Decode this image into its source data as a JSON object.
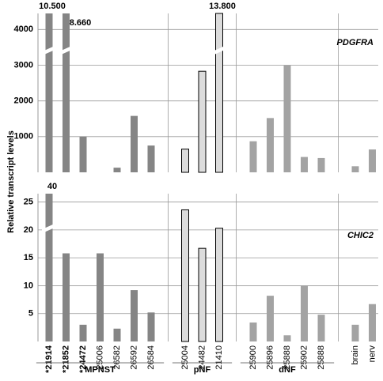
{
  "chart_data": [
    {
      "type": "bar",
      "title": "PDGFRA",
      "ylabel": "Relative transcript levels",
      "ylim": [
        0,
        4450
      ],
      "yticks": [
        1000,
        2000,
        3000,
        4000
      ],
      "grid": true,
      "groups": [
        {
          "color": "#858585",
          "values": [
            10500,
            8660,
            1000,
            0,
            130,
            1580,
            750
          ],
          "value_labels": [
            "10.500",
            "8.660",
            null,
            null,
            null,
            null,
            null
          ]
        },
        {
          "color": "#dcdcdc",
          "values": [
            650,
            2830,
            13800
          ],
          "value_labels": [
            null,
            null,
            "13.800"
          ]
        },
        {
          "color": "#a3a3a3",
          "values": [
            870,
            1520,
            3000,
            430,
            400
          ]
        },
        {
          "color": "#a3a3a3",
          "values": [
            170,
            640
          ]
        }
      ]
    },
    {
      "type": "bar",
      "title": "CHIC2",
      "ylim": [
        0,
        26.5
      ],
      "yticks": [
        5,
        10,
        15,
        20,
        25
      ],
      "grid": true,
      "groups": [
        {
          "name": "MPNST",
          "color": "#858585",
          "categories": [
            "*21914",
            "*21852",
            "*24472",
            "25006",
            "26582",
            "26592",
            "26584"
          ],
          "values": [
            40,
            15.8,
            3,
            15.8,
            2.3,
            9.2,
            5.2
          ],
          "value_labels": [
            "40",
            null,
            null,
            null,
            null,
            null,
            null
          ]
        },
        {
          "name": "pNF",
          "color": "#dcdcdc",
          "categories": [
            "25004",
            "24482",
            "21410"
          ],
          "values": [
            23.6,
            16.7,
            20.3
          ]
        },
        {
          "name": "dNF",
          "color": "#a3a3a3",
          "categories": [
            "25900",
            "25896",
            "25888",
            "25902",
            "25888"
          ],
          "values": [
            3.4,
            8.2,
            1.1,
            10,
            4.8
          ]
        },
        {
          "color": "#a3a3a3",
          "categories": [
            "brain",
            "nerv"
          ],
          "values": [
            3,
            6.7
          ]
        }
      ]
    }
  ]
}
